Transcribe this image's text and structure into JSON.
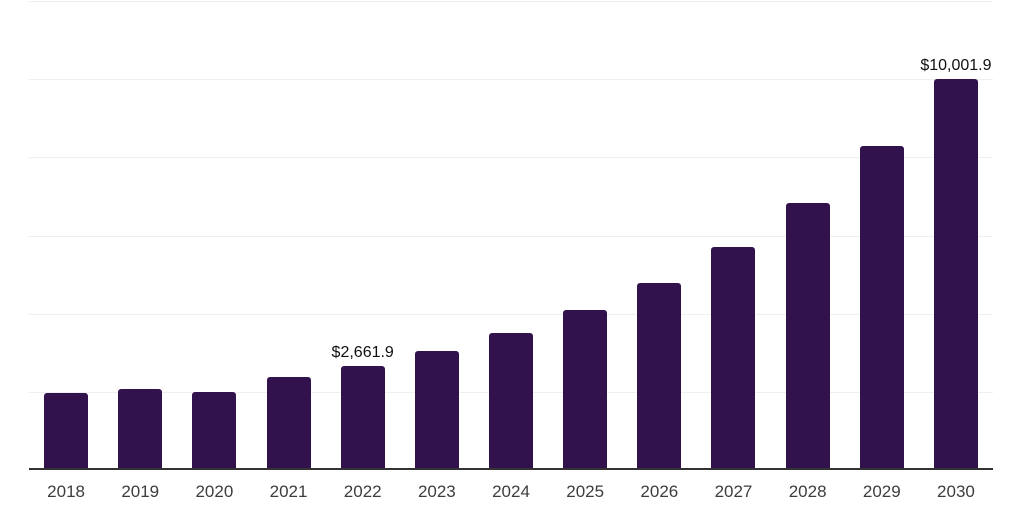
{
  "chart_data": {
    "type": "bar",
    "title": "",
    "categories": [
      "2018",
      "2019",
      "2020",
      "2021",
      "2022",
      "2023",
      "2024",
      "2025",
      "2026",
      "2027",
      "2028",
      "2029",
      "2030"
    ],
    "values": [
      1966,
      2077,
      2000,
      2377,
      2661.9,
      3051,
      3500,
      4085,
      4790,
      5700,
      6840,
      8300,
      10001.9
    ],
    "data_labels": [
      {
        "index": 4,
        "text": "$2,661.9"
      },
      {
        "index": 12,
        "text": "$10,001.9"
      }
    ],
    "xlabel": "",
    "ylabel": "",
    "ylim": [
      0,
      12000
    ],
    "gridline_step": 2000,
    "grid": true,
    "y_tick_labels_visible": false,
    "legend": "none",
    "colors": {
      "bar_fill": "#32124D",
      "gridline": "#efefef",
      "axis_line": "#333333",
      "tick_label": "#3d3d3d",
      "value_label": "#101010",
      "background": "#ffffff"
    }
  }
}
